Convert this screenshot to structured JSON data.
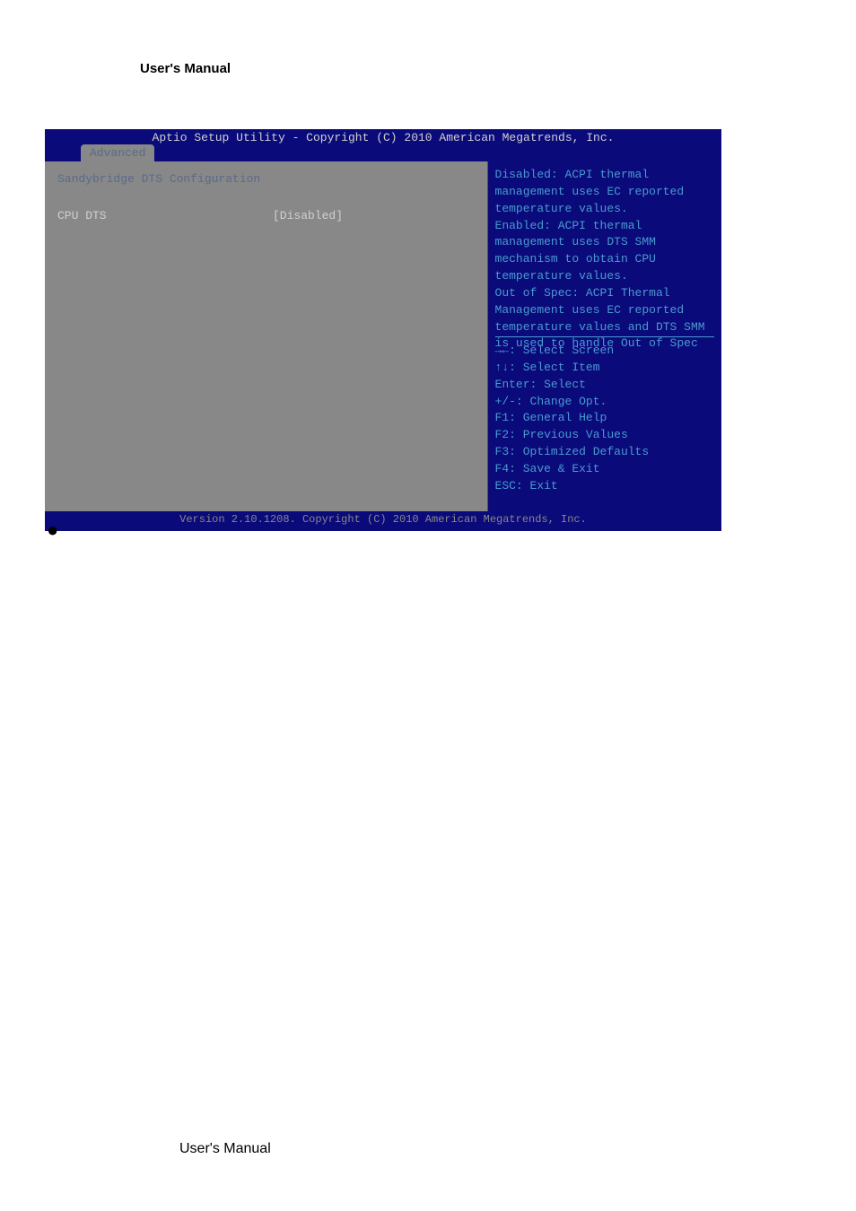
{
  "page": {
    "header": "User's Manual",
    "footer": "User's Manual"
  },
  "bios": {
    "title_bar": "Aptio Setup Utility - Copyright (C) 2010 American Megatrends, Inc.",
    "tab": "Advanced",
    "left_panel": {
      "section_title": "Sandybridge DTS Configuration",
      "setting_label": "CPU DTS",
      "setting_value": "[Disabled]"
    },
    "right_panel": {
      "help_lines": [
        "Disabled: ACPI thermal",
        "management uses EC reported",
        "temperature values.",
        "Enabled: ACPI thermal",
        "management uses DTS SMM",
        "mechanism to obtain CPU",
        "temperature values.",
        "Out of Spec: ACPI Thermal",
        "Management uses EC reported",
        "temperature values and DTS SMM",
        "is used to handle Out of Spec"
      ],
      "key_lines": [
        "→←: Select Screen",
        "↑↓: Select Item",
        "Enter: Select",
        "+/-: Change Opt.",
        "F1: General Help",
        "F2: Previous Values",
        "F3: Optimized Defaults",
        "F4: Save & Exit",
        "ESC: Exit"
      ]
    },
    "footer_bar": "Version 2.10.1208. Copyright (C) 2010 American Megatrends, Inc.",
    "colors": {
      "bios_dark_blue": "#0a0a7a",
      "bios_gray_panel": "#888888",
      "bios_text_cyan": "#4a9ad0",
      "bios_text_light": "#d0d0d0",
      "bios_text_label": "#5a6a8a"
    }
  }
}
